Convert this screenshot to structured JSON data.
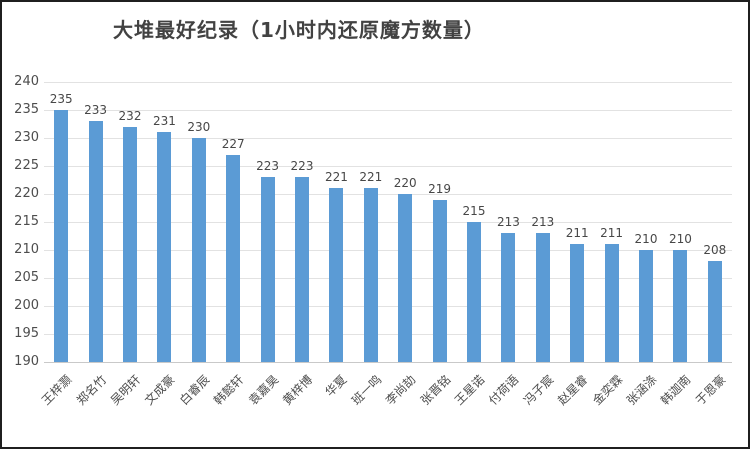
{
  "chart_data": {
    "type": "bar",
    "title": "大堆最好纪录（1小时内还原魔方数量）",
    "categories": [
      "王梓灏",
      "郑名竹",
      "吴明轩",
      "文成豪",
      "白睿辰",
      "韩懿轩",
      "袁嘉昊",
      "黄梓博",
      "华夏",
      "班一鸣",
      "李尚劼",
      "张晋铭",
      "王星诺",
      "付荷语",
      "冯子宸",
      "赵星睿",
      "金奕霖",
      "张涵涤",
      "韩迦南",
      "于恩豪"
    ],
    "values": [
      235,
      233,
      232,
      231,
      230,
      227,
      223,
      223,
      221,
      221,
      220,
      219,
      215,
      213,
      213,
      211,
      211,
      210,
      210,
      208
    ],
    "xlabel": "",
    "ylabel": "",
    "ylim": [
      190,
      240
    ],
    "ytick_step": 5,
    "grid": true,
    "legend_position": "none",
    "data_labels_shown": true,
    "xlabel_rotation_deg": -45
  },
  "colors": {
    "bar": "#5B9BD5",
    "gridline": "#e2e2e2",
    "axis_line": "#c9c9c9",
    "tick_text": "#4d4d4d",
    "data_label_text": "#474747",
    "title_text": "#424242",
    "frame_border": "#1f1f1f",
    "background": "#ffffff"
  }
}
